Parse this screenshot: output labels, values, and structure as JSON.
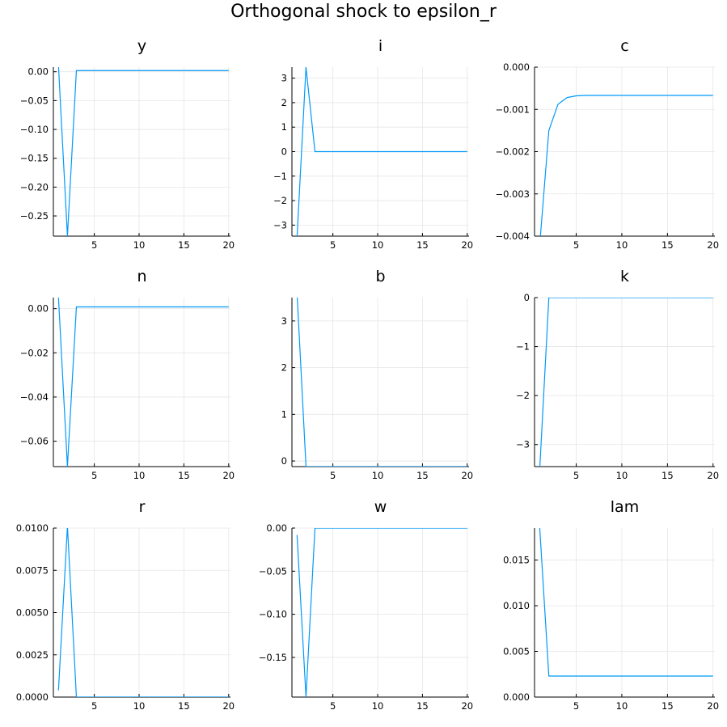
{
  "title": "Orthogonal shock to epsilon_r",
  "colors": {
    "series": "#009af9",
    "grid": "#e6e6e6",
    "axis": "#000000"
  },
  "chart_data": [
    {
      "type": "line",
      "title": "y",
      "x": [
        1,
        2,
        3,
        4,
        5,
        6,
        7,
        8,
        9,
        10,
        11,
        12,
        13,
        14,
        15,
        16,
        17,
        18,
        19,
        20
      ],
      "y": [
        0.01,
        -0.285,
        0.002,
        0.002,
        0.002,
        0.002,
        0.002,
        0.002,
        0.002,
        0.002,
        0.002,
        0.002,
        0.002,
        0.002,
        0.002,
        0.002,
        0.002,
        0.002,
        0.002,
        0.002
      ],
      "xlim": [
        0.43,
        20.2
      ],
      "ylim": [
        -0.285,
        0.008
      ],
      "xticks": [
        5,
        10,
        15,
        20
      ],
      "xtick_labels": [
        "5",
        "10",
        "15",
        "20"
      ],
      "yticks": [
        0.0,
        -0.05,
        -0.1,
        -0.15,
        -0.2,
        -0.25
      ],
      "ytick_labels": [
        "0.00",
        "−0.05",
        "−0.10",
        "−0.15",
        "−0.20",
        "−0.25"
      ],
      "grid": true
    },
    {
      "type": "line",
      "title": "i",
      "x": [
        1,
        2,
        3,
        4,
        5,
        6,
        7,
        8,
        9,
        10,
        11,
        12,
        13,
        14,
        15,
        16,
        17,
        18,
        19,
        20
      ],
      "y": [
        -3.5,
        3.45,
        0.0,
        0.0,
        0.0,
        0.0,
        0.0,
        0.0,
        0.0,
        0.0,
        0.0,
        0.0,
        0.0,
        0.0,
        0.0,
        0.0,
        0.0,
        0.0,
        0.0,
        0.0
      ],
      "xlim": [
        0.43,
        20.2
      ],
      "ylim": [
        -3.45,
        3.45
      ],
      "xticks": [
        5,
        10,
        15,
        20
      ],
      "xtick_labels": [
        "5",
        "10",
        "15",
        "20"
      ],
      "yticks": [
        3,
        2,
        1,
        0,
        -1,
        -2,
        -3
      ],
      "ytick_labels": [
        "3",
        "2",
        "1",
        "0",
        "−1",
        "−2",
        "−3"
      ],
      "grid": true
    },
    {
      "type": "line",
      "title": "c",
      "x": [
        1,
        2,
        3,
        4,
        5,
        6,
        7,
        8,
        9,
        10,
        11,
        12,
        13,
        14,
        15,
        16,
        17,
        18,
        19,
        20
      ],
      "y": [
        -0.0042,
        -0.0015,
        -0.00088,
        -0.00072,
        -0.00068,
        -0.00067,
        -0.00067,
        -0.00067,
        -0.00067,
        -0.00067,
        -0.00067,
        -0.00067,
        -0.00067,
        -0.00067,
        -0.00067,
        -0.00067,
        -0.00067,
        -0.00067,
        -0.00067,
        -0.00067
      ],
      "xlim": [
        0.43,
        20.2
      ],
      "ylim": [
        -0.004,
        0.0
      ],
      "xticks": [
        5,
        10,
        15,
        20
      ],
      "xtick_labels": [
        "5",
        "10",
        "15",
        "20"
      ],
      "yticks": [
        0.0,
        -0.001,
        -0.002,
        -0.003,
        -0.004
      ],
      "ytick_labels": [
        "0.000",
        "−0.001",
        "−0.002",
        "−0.003",
        "−0.004"
      ],
      "grid": true
    },
    {
      "type": "line",
      "title": "n",
      "x": [
        1,
        2,
        3,
        4,
        5,
        6,
        7,
        8,
        9,
        10,
        11,
        12,
        13,
        14,
        15,
        16,
        17,
        18,
        19,
        20
      ],
      "y": [
        0.005,
        -0.0715,
        0.0008,
        0.0008,
        0.0008,
        0.0008,
        0.0008,
        0.0008,
        0.0008,
        0.0008,
        0.0008,
        0.0008,
        0.0008,
        0.0008,
        0.0008,
        0.0008,
        0.0008,
        0.0008,
        0.0008,
        0.0008
      ],
      "xlim": [
        0.43,
        20.2
      ],
      "ylim": [
        -0.0715,
        0.005
      ],
      "xticks": [
        5,
        10,
        15,
        20
      ],
      "xtick_labels": [
        "5",
        "10",
        "15",
        "20"
      ],
      "yticks": [
        0.0,
        -0.02,
        -0.04,
        -0.06
      ],
      "ytick_labels": [
        "0.00",
        "−0.02",
        "−0.04",
        "−0.06"
      ],
      "grid": true
    },
    {
      "type": "line",
      "title": "b",
      "x": [
        1,
        2,
        3,
        4,
        5,
        6,
        7,
        8,
        9,
        10,
        11,
        12,
        13,
        14,
        15,
        16,
        17,
        18,
        19,
        20
      ],
      "y": [
        3.6,
        -0.12,
        -0.12,
        -0.12,
        -0.12,
        -0.12,
        -0.12,
        -0.12,
        -0.12,
        -0.12,
        -0.12,
        -0.12,
        -0.12,
        -0.12,
        -0.12,
        -0.12,
        -0.12,
        -0.12,
        -0.12,
        -0.12
      ],
      "xlim": [
        0.43,
        20.2
      ],
      "ylim": [
        -0.12,
        3.5
      ],
      "xticks": [
        5,
        10,
        15,
        20
      ],
      "xtick_labels": [
        "5",
        "10",
        "15",
        "20"
      ],
      "yticks": [
        3,
        2,
        1,
        0
      ],
      "ytick_labels": [
        "3",
        "2",
        "1",
        "0"
      ],
      "grid": true
    },
    {
      "type": "line",
      "title": "k",
      "x": [
        1,
        2,
        3,
        4,
        5,
        6,
        7,
        8,
        9,
        10,
        11,
        12,
        13,
        14,
        15,
        16,
        17,
        18,
        19,
        20
      ],
      "y": [
        -3.5,
        0.0,
        0.0,
        0.0,
        0.0,
        0.0,
        0.0,
        0.0,
        0.0,
        0.0,
        0.0,
        0.0,
        0.0,
        0.0,
        0.0,
        0.0,
        0.0,
        0.0,
        0.0,
        0.0
      ],
      "xlim": [
        0.43,
        20.2
      ],
      "ylim": [
        -3.45,
        0.0
      ],
      "xticks": [
        5,
        10,
        15,
        20
      ],
      "xtick_labels": [
        "5",
        "10",
        "15",
        "20"
      ],
      "yticks": [
        0,
        -1,
        -2,
        -3
      ],
      "ytick_labels": [
        "0",
        "−1",
        "−2",
        "−3"
      ],
      "grid": true
    },
    {
      "type": "line",
      "title": "r",
      "x": [
        1,
        2,
        3,
        4,
        5,
        6,
        7,
        8,
        9,
        10,
        11,
        12,
        13,
        14,
        15,
        16,
        17,
        18,
        19,
        20
      ],
      "y": [
        0.0004,
        0.0101,
        0.0,
        0.0,
        0.0,
        0.0,
        0.0,
        0.0,
        0.0,
        0.0,
        0.0,
        0.0,
        0.0,
        0.0,
        0.0,
        0.0,
        0.0,
        0.0,
        0.0,
        0.0
      ],
      "xlim": [
        0.43,
        20.2
      ],
      "ylim": [
        0.0,
        0.01
      ],
      "xticks": [
        5,
        10,
        15,
        20
      ],
      "xtick_labels": [
        "5",
        "10",
        "15",
        "20"
      ],
      "yticks": [
        0.01,
        0.0075,
        0.005,
        0.0025,
        0.0
      ],
      "ytick_labels": [
        "0.0100",
        "0.0075",
        "0.0050",
        "0.0025",
        "0.0000"
      ],
      "grid": true
    },
    {
      "type": "line",
      "title": "w",
      "x": [
        1,
        2,
        3,
        4,
        5,
        6,
        7,
        8,
        9,
        10,
        11,
        12,
        13,
        14,
        15,
        16,
        17,
        18,
        19,
        20
      ],
      "y": [
        -0.008,
        -0.196,
        0.0,
        0.0,
        0.0,
        0.0,
        0.0,
        0.0,
        0.0,
        0.0,
        0.0,
        0.0,
        0.0,
        0.0,
        0.0,
        0.0,
        0.0,
        0.0,
        0.0,
        0.0
      ],
      "xlim": [
        0.43,
        20.2
      ],
      "ylim": [
        -0.196,
        0.0
      ],
      "xticks": [
        5,
        10,
        15,
        20
      ],
      "xtick_labels": [
        "5",
        "10",
        "15",
        "20"
      ],
      "yticks": [
        0.0,
        -0.05,
        -0.1,
        -0.15
      ],
      "ytick_labels": [
        "0.00",
        "−0.05",
        "−0.10",
        "−0.15"
      ],
      "grid": true
    },
    {
      "type": "line",
      "title": "lam",
      "x": [
        1,
        2,
        3,
        4,
        5,
        6,
        7,
        8,
        9,
        10,
        11,
        12,
        13,
        14,
        15,
        16,
        17,
        18,
        19,
        20
      ],
      "y": [
        0.0185,
        0.0023,
        0.0023,
        0.0023,
        0.0023,
        0.0023,
        0.0023,
        0.0023,
        0.0023,
        0.0023,
        0.0023,
        0.0023,
        0.0023,
        0.0023,
        0.0023,
        0.0023,
        0.0023,
        0.0023,
        0.0023,
        0.0023
      ],
      "xlim": [
        0.43,
        20.2
      ],
      "ylim": [
        0.0,
        0.0185
      ],
      "xticks": [
        5,
        10,
        15,
        20
      ],
      "xtick_labels": [
        "5",
        "10",
        "15",
        "20"
      ],
      "yticks": [
        0.015,
        0.01,
        0.005,
        0.0
      ],
      "ytick_labels": [
        "0.015",
        "0.010",
        "0.005",
        "0.000"
      ],
      "grid": true
    }
  ]
}
